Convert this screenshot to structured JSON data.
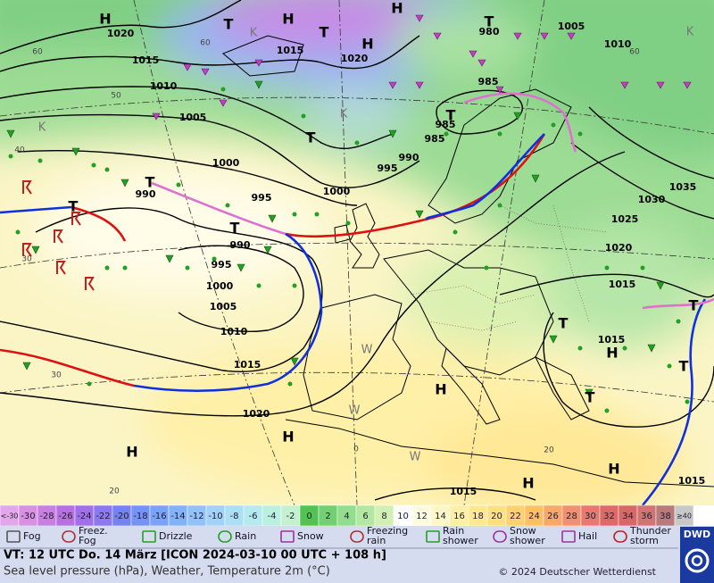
{
  "map": {
    "isobar_labels": [
      1020,
      1015,
      1010,
      1005,
      1000,
      990,
      995,
      990,
      995,
      1000,
      1005,
      1010,
      1015,
      1020,
      1015,
      1020,
      985,
      985,
      985,
      990,
      995,
      1000,
      980,
      1005,
      1010,
      1030,
      1035,
      1025,
      1020,
      1015,
      1015,
      1015,
      1015
    ],
    "centers": [
      "H",
      "T",
      "H",
      "T",
      "H",
      "H",
      "T",
      "T",
      "T",
      "T",
      "T",
      "T",
      "T",
      "H",
      "T",
      "T",
      "T",
      "H",
      "H",
      "H",
      "H",
      "H"
    ],
    "temp_labels": [
      60,
      60,
      50,
      40,
      30,
      30,
      20,
      20,
      60,
      0
    ],
    "air_mass_labels": [
      "K",
      "K",
      "K",
      "K",
      "W",
      "W",
      "W"
    ]
  },
  "color_scale": [
    {
      "label": "<-30",
      "color": "#e2a6ea"
    },
    {
      "label": "-30",
      "color": "#d890e2"
    },
    {
      "label": "-28",
      "color": "#c880e0"
    },
    {
      "label": "-26",
      "color": "#b670e2"
    },
    {
      "label": "-24",
      "color": "#a070e8"
    },
    {
      "label": "-22",
      "color": "#8c78f0"
    },
    {
      "label": "-20",
      "color": "#7482f2"
    },
    {
      "label": "-18",
      "color": "#7492f8"
    },
    {
      "label": "-16",
      "color": "#7aa2f8"
    },
    {
      "label": "-14",
      "color": "#84b2f8"
    },
    {
      "label": "-12",
      "color": "#92c2f8"
    },
    {
      "label": "-10",
      "color": "#a2d2f8"
    },
    {
      "label": "-8",
      "color": "#acdef6"
    },
    {
      "label": "-6",
      "color": "#b4eaf0"
    },
    {
      "label": "-4",
      "color": "#baf0e0"
    },
    {
      "label": "-2",
      "color": "#c4f2d0"
    },
    {
      "label": "0",
      "color": "#52c252"
    },
    {
      "label": "2",
      "color": "#72d072"
    },
    {
      "label": "4",
      "color": "#92de8e"
    },
    {
      "label": "6",
      "color": "#b2e8a2"
    },
    {
      "label": "8",
      "color": "#d2f0b4"
    },
    {
      "label": "10",
      "color": "#ffffff"
    },
    {
      "label": "12",
      "color": "#fffbe2"
    },
    {
      "label": "14",
      "color": "#fff7c6"
    },
    {
      "label": "16",
      "color": "#fff0a6"
    },
    {
      "label": "18",
      "color": "#ffe892"
    },
    {
      "label": "20",
      "color": "#ffe080"
    },
    {
      "label": "22",
      "color": "#ffd070"
    },
    {
      "label": "24",
      "color": "#ffc062"
    },
    {
      "label": "26",
      "color": "#f8a868"
    },
    {
      "label": "28",
      "color": "#f09070"
    },
    {
      "label": "30",
      "color": "#e87870"
    },
    {
      "label": "32",
      "color": "#e06868"
    },
    {
      "label": "34",
      "color": "#d86868"
    },
    {
      "label": "36",
      "color": "#d07474"
    },
    {
      "label": "38",
      "color": "#b87a7a"
    },
    {
      "label": "≥40",
      "color": "#c8c8c8"
    }
  ],
  "weather_legend": [
    [
      "Fog"
    ],
    [
      "Freez.",
      "Fog"
    ],
    [
      "Drizzle"
    ],
    [
      "Rain"
    ],
    [
      "Snow"
    ],
    [
      "Freezing",
      "rain"
    ],
    [
      "Rain",
      "shower"
    ],
    [
      "Snow",
      "shower"
    ],
    [
      "Hail"
    ],
    [
      "Thunder",
      "storm"
    ]
  ],
  "footer": {
    "valid_time": "VT: 12 UTC Do.  14 März [ICON 2024-03-10  00 UTC + 108 h]",
    "description": "Sea level pressure (hPa), Weather, Temperature 2m (°C)",
    "copyright": "© 2024 Deutscher Wetterdienst",
    "logo": "DWD"
  }
}
